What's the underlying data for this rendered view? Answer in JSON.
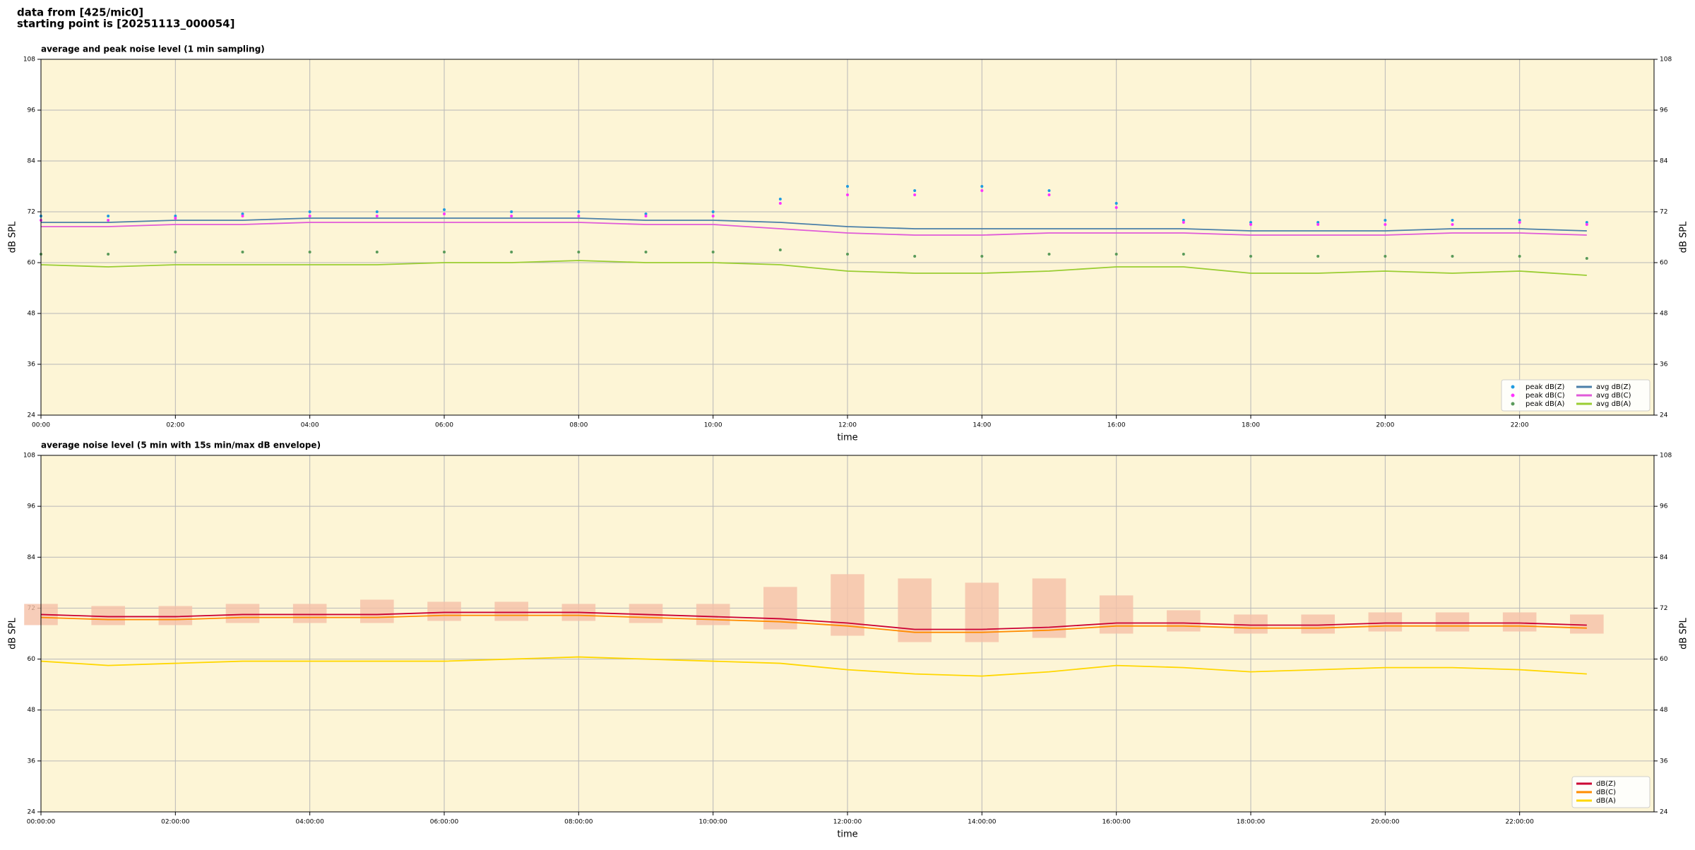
{
  "header": {
    "lines": [
      "data from [425/mic0]",
      "starting point is [20251113_000054]"
    ]
  },
  "chart_data": [
    {
      "type": "line",
      "title": "average and peak noise level (1 min sampling)",
      "xlabel": "time",
      "ylabel": "dB SPL",
      "x": [
        0,
        1,
        2,
        3,
        4,
        5,
        6,
        7,
        8,
        9,
        10,
        11,
        12,
        13,
        14,
        15,
        16,
        17,
        18,
        19,
        20,
        21,
        22,
        23
      ],
      "xlim": [
        0,
        24
      ],
      "xticks": [
        {
          "value": 0,
          "label": "00:00"
        },
        {
          "value": 2,
          "label": "02:00"
        },
        {
          "value": 4,
          "label": "04:00"
        },
        {
          "value": 6,
          "label": "06:00"
        },
        {
          "value": 8,
          "label": "08:00"
        },
        {
          "value": 10,
          "label": "10:00"
        },
        {
          "value": 12,
          "label": "12:00"
        },
        {
          "value": 14,
          "label": "14:00"
        },
        {
          "value": 16,
          "label": "16:00"
        },
        {
          "value": 18,
          "label": "18:00"
        },
        {
          "value": 20,
          "label": "20:00"
        },
        {
          "value": 22,
          "label": "22:00"
        }
      ],
      "ylim": [
        24,
        108
      ],
      "yticks": [
        24,
        36,
        48,
        60,
        72,
        84,
        96,
        108
      ],
      "grid": true,
      "right_axis": true,
      "legend": "lower right",
      "legend_columns": 2,
      "background": "#fdf5d6",
      "series": [
        {
          "name": "peak dB(Z)",
          "kind": "scatter",
          "color": "#1f9be0",
          "values": [
            71,
            71,
            71,
            71.5,
            72,
            72,
            72.5,
            72,
            72,
            71.5,
            72,
            75,
            78,
            77,
            78,
            77,
            74,
            70,
            69.5,
            69.5,
            70,
            70,
            70,
            69.5
          ]
        },
        {
          "name": "peak dB(C)",
          "kind": "scatter",
          "color": "#ff33ff",
          "values": [
            70,
            70,
            70.5,
            71,
            71,
            71,
            71.5,
            71,
            71,
            71,
            71,
            74,
            76,
            76,
            77,
            76,
            73,
            69.5,
            69,
            69,
            69,
            69,
            69.5,
            69
          ]
        },
        {
          "name": "peak dB(A)",
          "kind": "scatter",
          "color": "#5a9a5a",
          "values": [
            62,
            62,
            62.5,
            62.5,
            62.5,
            62.5,
            62.5,
            62.5,
            62.5,
            62.5,
            62.5,
            63,
            62,
            61.5,
            61.5,
            62,
            62,
            62,
            61.5,
            61.5,
            61.5,
            61.5,
            61.5,
            61
          ]
        },
        {
          "name": "avg dB(Z)",
          "kind": "line",
          "color": "#4a7fa8",
          "values": [
            69.5,
            69.5,
            70,
            70,
            70.5,
            70.5,
            70.5,
            70.5,
            70.5,
            70,
            70,
            69.5,
            68.5,
            68,
            68,
            68,
            68,
            68,
            67.5,
            67.5,
            67.5,
            68,
            68,
            67.5
          ]
        },
        {
          "name": "avg dB(C)",
          "kind": "line",
          "color": "#e05ad8",
          "values": [
            68.5,
            68.5,
            69,
            69,
            69.5,
            69.5,
            69.5,
            69.5,
            69.5,
            69,
            69,
            68,
            67,
            66.5,
            66.5,
            67,
            67,
            67,
            66.5,
            66.5,
            66.5,
            67,
            67,
            66.5
          ]
        },
        {
          "name": "avg dB(A)",
          "kind": "line",
          "color": "#9acd32",
          "values": [
            59.5,
            59,
            59.5,
            59.5,
            59.5,
            59.5,
            60,
            60,
            60.5,
            60,
            60,
            59.5,
            58,
            57.5,
            57.5,
            58,
            59,
            59,
            57.5,
            57.5,
            58,
            57.5,
            58,
            57
          ]
        }
      ]
    },
    {
      "type": "line",
      "title": "average noise level (5 min with 15s min/max dB envelope)",
      "xlabel": "time",
      "ylabel": "dB SPL",
      "x": [
        0,
        1,
        2,
        3,
        4,
        5,
        6,
        7,
        8,
        9,
        10,
        11,
        12,
        13,
        14,
        15,
        16,
        17,
        18,
        19,
        20,
        21,
        22,
        23
      ],
      "xlim": [
        0,
        24
      ],
      "xticks": [
        {
          "value": 0,
          "label": "00:00:00"
        },
        {
          "value": 2,
          "label": "02:00:00"
        },
        {
          "value": 4,
          "label": "04:00:00"
        },
        {
          "value": 6,
          "label": "06:00:00"
        },
        {
          "value": 8,
          "label": "08:00:00"
        },
        {
          "value": 10,
          "label": "10:00:00"
        },
        {
          "value": 12,
          "label": "12:00:00"
        },
        {
          "value": 14,
          "label": "14:00:00"
        },
        {
          "value": 16,
          "label": "16:00:00"
        },
        {
          "value": 18,
          "label": "18:00:00"
        },
        {
          "value": 20,
          "label": "20:00:00"
        },
        {
          "value": 22,
          "label": "22:00:00"
        }
      ],
      "ylim": [
        24,
        108
      ],
      "yticks": [
        24,
        36,
        48,
        60,
        72,
        84,
        96,
        108
      ],
      "grid": true,
      "right_axis": true,
      "legend": "lower right",
      "legend_columns": 1,
      "background": "#fdf5d6",
      "envelope": {
        "color": "#f5c0a8",
        "low": [
          68,
          68,
          68,
          68.5,
          68.5,
          68.5,
          69,
          69,
          69,
          68.5,
          68,
          67,
          65.5,
          64,
          64,
          65,
          66,
          66.5,
          66,
          66,
          66.5,
          66.5,
          66.5,
          66
        ],
        "high": [
          73,
          72.5,
          72.5,
          73,
          73,
          74,
          73.5,
          73.5,
          73,
          73,
          73,
          77,
          80,
          79,
          78,
          79,
          75,
          71.5,
          70.5,
          70.5,
          71,
          71,
          71,
          70.5
        ]
      },
      "series": [
        {
          "name": "dB(Z)",
          "kind": "line",
          "color": "#cc0033",
          "values": [
            70.5,
            70,
            70,
            70.5,
            70.5,
            70.5,
            71,
            71,
            71,
            70.5,
            70,
            69.5,
            68.5,
            67,
            67,
            67.5,
            68.5,
            68.5,
            68,
            68,
            68.5,
            68.5,
            68.5,
            68
          ]
        },
        {
          "name": "dB(C)",
          "kind": "line",
          "color": "#ff8c00",
          "values": [
            69.8,
            69.3,
            69.3,
            69.8,
            69.8,
            69.8,
            70.3,
            70.3,
            70.3,
            69.8,
            69.3,
            68.8,
            67.8,
            66.3,
            66.3,
            66.8,
            67.8,
            67.8,
            67.3,
            67.3,
            67.8,
            67.8,
            67.8,
            67.3
          ]
        },
        {
          "name": "dB(A)",
          "kind": "line",
          "color": "#ffd700",
          "values": [
            59.5,
            58.5,
            59,
            59.5,
            59.5,
            59.5,
            59.5,
            60,
            60.5,
            60,
            59.5,
            59,
            57.5,
            56.5,
            56,
            57,
            58.5,
            58,
            57,
            57.5,
            58,
            58,
            57.5,
            56.5
          ]
        }
      ]
    }
  ]
}
